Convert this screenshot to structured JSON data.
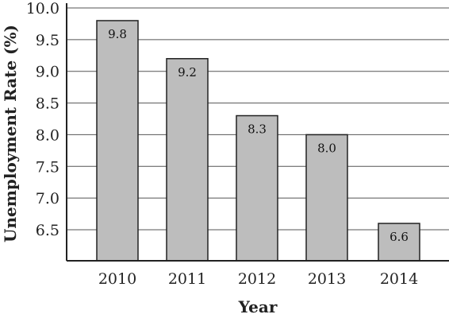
{
  "chart_data": {
    "type": "bar",
    "title": "",
    "xlabel": "Year",
    "ylabel": "Unemployment Rate (%)",
    "categories": [
      "2010",
      "2011",
      "2012",
      "2013",
      "2014"
    ],
    "values": [
      9.8,
      9.2,
      8.3,
      8.0,
      6.6
    ],
    "value_labels": [
      "9.8",
      "9.2",
      "8.3",
      "8.0",
      "6.6"
    ],
    "ylim": [
      6.0,
      10.0
    ],
    "yticks": [
      6.5,
      7.0,
      7.5,
      8.0,
      8.5,
      9.0,
      9.5,
      10.0
    ],
    "ytick_labels": [
      "6.5",
      "7.0",
      "7.5",
      "8.0",
      "8.5",
      "9.0",
      "9.5",
      "10.0"
    ],
    "grid": true,
    "legend": "none",
    "colors": {
      "bar_fill": "#bdbdbd",
      "bar_stroke": "#222222",
      "grid": "#555555"
    }
  }
}
